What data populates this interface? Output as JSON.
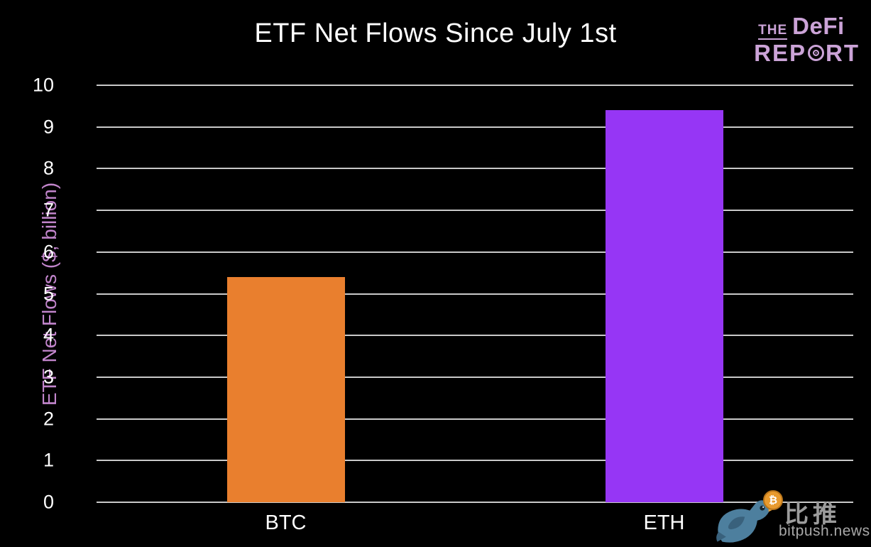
{
  "chart_data": {
    "type": "bar",
    "title": "ETF Net Flows Since July 1st",
    "ylabel": "ETF Net Flows ($, billion)",
    "xlabel": "",
    "categories": [
      "BTC",
      "ETH"
    ],
    "values": [
      5.4,
      9.4
    ],
    "bar_colors": [
      "#e97f2e",
      "#9636f5"
    ],
    "ylim": [
      0,
      10
    ],
    "ytick_step": 1,
    "grid": "horizontal",
    "legend": "none",
    "background_color": "#000000",
    "gridline_color": "#c9c9c9",
    "tick_label_color": "#ffffff",
    "ylabel_color": "#c285cc",
    "title_color": "#ffffff"
  },
  "header": {
    "logo": {
      "the": "THE",
      "defi": "DeFi",
      "report_pre": "REP",
      "report_post": "RT",
      "color": "#cba3d7"
    }
  },
  "watermark": {
    "cn_text": "比推",
    "site_text": "bitpush.news"
  }
}
